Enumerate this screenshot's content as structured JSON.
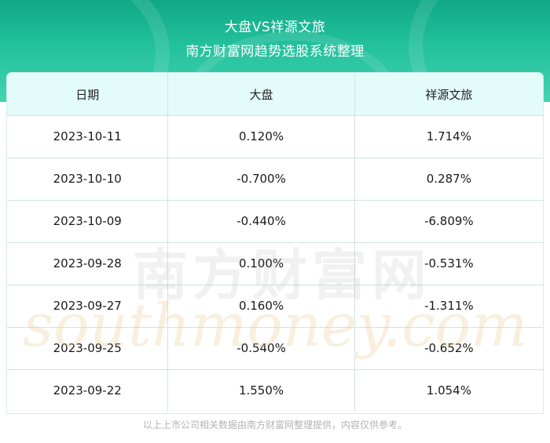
{
  "header": {
    "title": "大盘VS祥源文旅",
    "subtitle": "南方财富网趋势选股系统整理"
  },
  "table": {
    "columns": [
      "日期",
      "大盘",
      "祥源文旅"
    ],
    "rows": [
      [
        "2023-10-11",
        "0.120%",
        "1.714%"
      ],
      [
        "2023-10-10",
        "-0.700%",
        "0.287%"
      ],
      [
        "2023-10-09",
        "-0.440%",
        "-6.809%"
      ],
      [
        "2023-09-28",
        "0.100%",
        "-0.531%"
      ],
      [
        "2023-09-27",
        "0.160%",
        "-1.311%"
      ],
      [
        "2023-09-25",
        "-0.540%",
        "-0.652%"
      ],
      [
        "2023-09-22",
        "1.550%",
        "1.054%"
      ]
    ]
  },
  "watermark": {
    "cn": "南方财富网",
    "en": "southmoney.com"
  },
  "footer": {
    "disclaimer": "以上上市公司相关数据由南方财富网整理提供，内容仅供参考。"
  },
  "colors": {
    "header_green": "#23c19c",
    "table_header_bg": "#e3fbf9",
    "watermark_gold": "#e9c48a"
  }
}
